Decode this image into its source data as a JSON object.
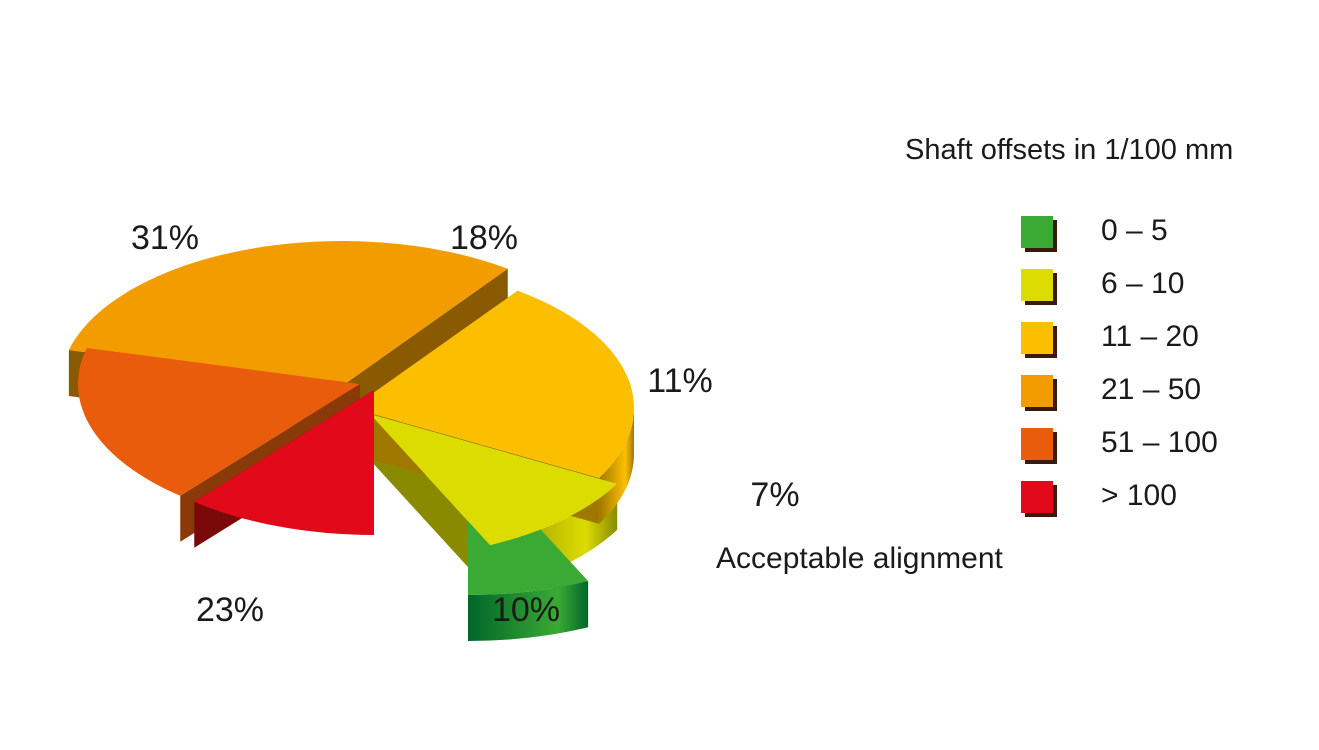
{
  "chart_data": {
    "type": "pie",
    "style": "3d-exploded",
    "legend_title": "Shaft offsets in 1/100 mm",
    "legend_placement": "right",
    "annotation": "Acceptable alignment",
    "slices": [
      {
        "category": "0 – 5",
        "value": 7,
        "label": "7%",
        "color": "#3aaa35",
        "dark": "#00662a"
      },
      {
        "category": "6 – 10",
        "value": 10,
        "label": "10%",
        "color": "#dcdc00",
        "dark": "#8a8a00"
      },
      {
        "category": "11 – 20",
        "value": 23,
        "label": "23%",
        "color": "#fcbf00",
        "dark": "#a07800"
      },
      {
        "category": "21 – 50",
        "value": 31,
        "label": "31%",
        "color": "#f39c00",
        "dark": "#8a5a00"
      },
      {
        "category": "51 – 100",
        "value": 18,
        "label": "18%",
        "color": "#e95c0c",
        "dark": "#8a3a08"
      },
      {
        "category": "> 100",
        "value": 11,
        "label": "11%",
        "color": "#e2091a",
        "dark": "#7a0a0a"
      }
    ]
  }
}
